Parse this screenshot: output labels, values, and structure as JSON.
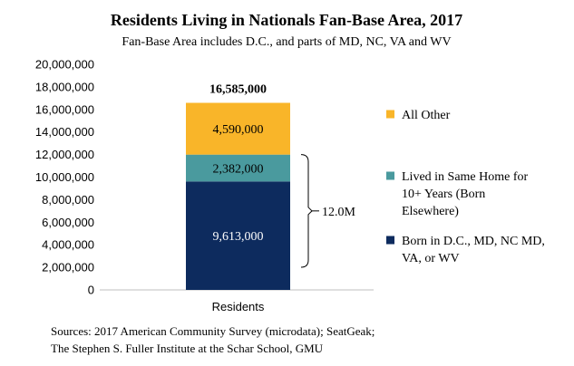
{
  "chart_data": {
    "type": "bar",
    "stacked": true,
    "title": "Residents Living in Nationals Fan-Base Area, 2017",
    "subtitle": "Fan-Base Area includes D.C., and parts of MD, NC, VA and WV",
    "categories": [
      "Residents"
    ],
    "series": [
      {
        "name": "Born in D.C., MD, NC MD, VA, or WV",
        "values": [
          9613000
        ],
        "label": "9,613,000",
        "color": "#0d2b5e",
        "label_color": "#ffffff"
      },
      {
        "name": "Lived in Same Home for 10+ Years (Born Elsewhere)",
        "values": [
          2382000
        ],
        "label": "2,382,000",
        "color": "#4a9a9e",
        "label_color": "#000000"
      },
      {
        "name": "All Other",
        "values": [
          4590000
        ],
        "label": "4,590,000",
        "color": "#f9b529",
        "label_color": "#000000"
      }
    ],
    "total_label": "16,585,000",
    "ylim": [
      0,
      20000000
    ],
    "yticks": [
      "0",
      "2,000,000",
      "4,000,000",
      "6,000,000",
      "8,000,000",
      "10,000,000",
      "12,000,000",
      "14,000,000",
      "16,000,000",
      "18,000,000",
      "20,000,000"
    ],
    "bracket_label": "12.0M",
    "legend_position": "right",
    "legend_lines": [
      [
        "All Other"
      ],
      [
        "Lived in Same Home for",
        "10+ Years (Born",
        "Elsewhere)"
      ],
      [
        "Born in D.C., MD, NC MD,",
        "VA, or WV"
      ]
    ],
    "grid": false,
    "source_lines": [
      "Sources: 2017 American Community Survey (microdata); SeatGeak;",
      "The Stephen S. Fuller Institute at the Schar School, GMU"
    ]
  }
}
